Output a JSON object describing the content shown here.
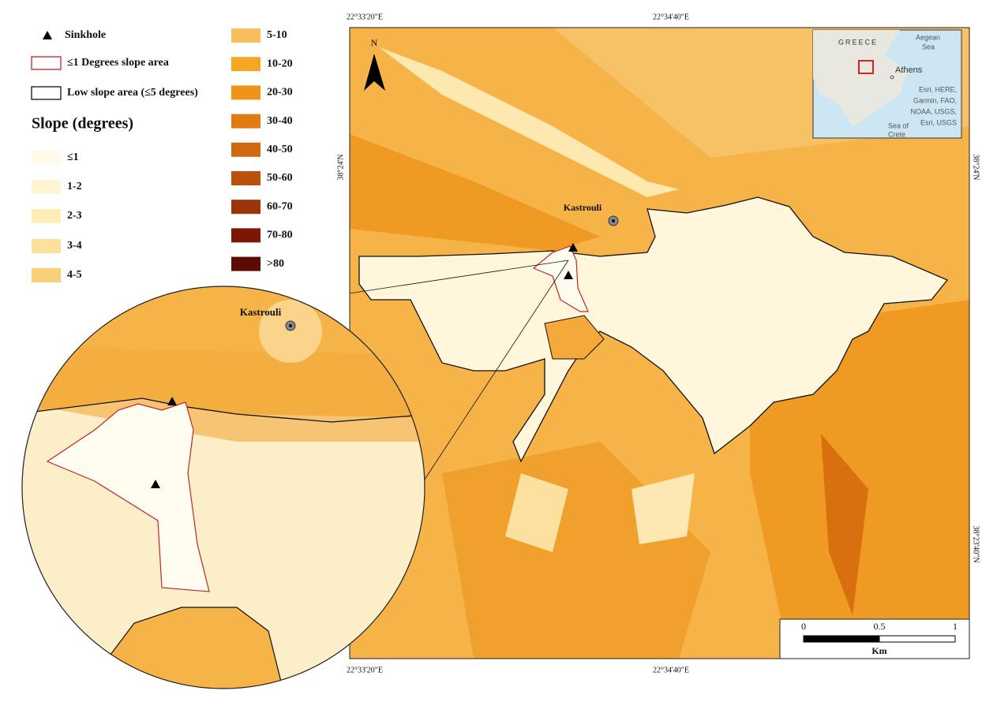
{
  "legend": {
    "sinkhole": "Sinkhole",
    "flat_area": "≤1 Degrees slope area",
    "low_slope_area": "Low slope area (≤5 degrees)",
    "slope_title": "Slope (degrees)",
    "slope_classes": [
      {
        "label": "≤1",
        "color": "#fffbe8"
      },
      {
        "label": "1-2",
        "color": "#fff5d3"
      },
      {
        "label": "2-3",
        "color": "#fdedb6"
      },
      {
        "label": "3-4",
        "color": "#fbe199"
      },
      {
        "label": "4-5",
        "color": "#f9d078"
      },
      {
        "label": "5-10",
        "color": "#f8bf5c"
      },
      {
        "label": "10-20",
        "color": "#f5a623"
      },
      {
        "label": "20-30",
        "color": "#ef941a"
      },
      {
        "label": "30-40",
        "color": "#e07b12"
      },
      {
        "label": "40-50",
        "color": "#d0680f"
      },
      {
        "label": "50-60",
        "color": "#bb510c"
      },
      {
        "label": "60-70",
        "color": "#9c3508"
      },
      {
        "label": "70-80",
        "color": "#7e1605"
      },
      {
        "label": ">80",
        "color": "#5e0a05"
      }
    ]
  },
  "map": {
    "north": "N",
    "place": "Kastrouli",
    "coordinates": {
      "top_left": "22°33'20\"E",
      "top_right": "22°34'40\"E",
      "bottom_left": "22°33'20\"E",
      "bottom_right": "22°34'40\"E",
      "left_upper": "38°24'N",
      "right_upper": "38°24'N",
      "right_lower": "38°23'40\"N"
    },
    "inset": {
      "country": "GREECE",
      "sea_1": "Aegean",
      "sea_1b": "Sea",
      "city": "Athens",
      "credit": [
        "Esri, HERE,",
        "Garmin, FAO,",
        "NOAA, USGS,",
        "Esri, USGS"
      ],
      "sea_2": "Sea of",
      "sea_2b": "Crete"
    },
    "scale_bar": {
      "ticks": [
        0,
        0.5,
        1
      ],
      "unit": "Km"
    }
  },
  "zoom": {
    "place": "Kastrouli"
  }
}
